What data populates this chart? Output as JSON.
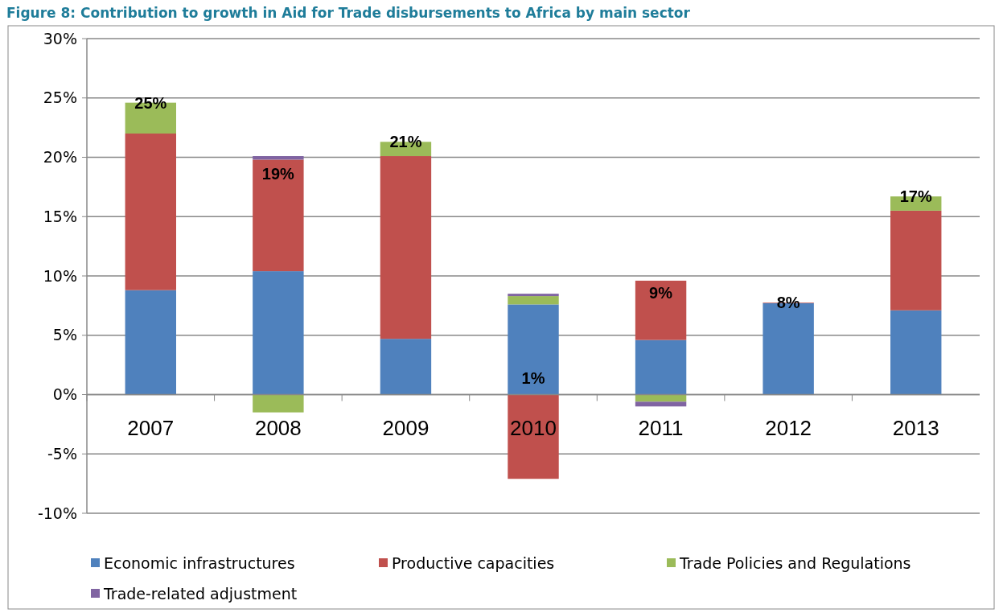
{
  "chart_data": {
    "type": "bar",
    "title": "Figure 8: Contribution to growth in Aid for Trade disbursements to Africa by main sector",
    "stacked": true,
    "categories": [
      "2007",
      "2008",
      "2009",
      "2010",
      "2011",
      "2012",
      "2013"
    ],
    "series": [
      {
        "name": "Economic infrastructures",
        "color": "#4f81bd",
        "values": [
          8.8,
          10.4,
          4.7,
          7.6,
          4.6,
          7.7,
          7.1
        ]
      },
      {
        "name": "Productive capacities",
        "color": "#c0504d",
        "values": [
          13.2,
          9.4,
          15.4,
          -7.1,
          5.0,
          0.05,
          8.4
        ]
      },
      {
        "name": "Trade Policies and  Regulations",
        "color": "#9bbb59",
        "values": [
          2.6,
          -1.5,
          1.2,
          0.7,
          -0.6,
          null,
          1.2
        ]
      },
      {
        "name": "Trade-related adjustment",
        "color": "#8064a2",
        "values": [
          0,
          0.3,
          null,
          0.2,
          -0.4,
          0,
          0
        ]
      }
    ],
    "totals": [
      "25%",
      "19%",
      "21%",
      "1%",
      "9%",
      "8%",
      "17%"
    ],
    "ylim": [
      -10,
      30
    ],
    "yticks": [
      {
        "value": -10,
        "label": "-10%"
      },
      {
        "value": -5,
        "label": "-5%"
      },
      {
        "value": 0,
        "label": "0%"
      },
      {
        "value": 5,
        "label": "5%"
      },
      {
        "value": 10,
        "label": "10%"
      },
      {
        "value": 15,
        "label": "15%"
      },
      {
        "value": 20,
        "label": "20%"
      },
      {
        "value": 25,
        "label": "25%"
      },
      {
        "value": 30,
        "label": "30%"
      }
    ],
    "grid": "y",
    "legend": "bottom"
  }
}
